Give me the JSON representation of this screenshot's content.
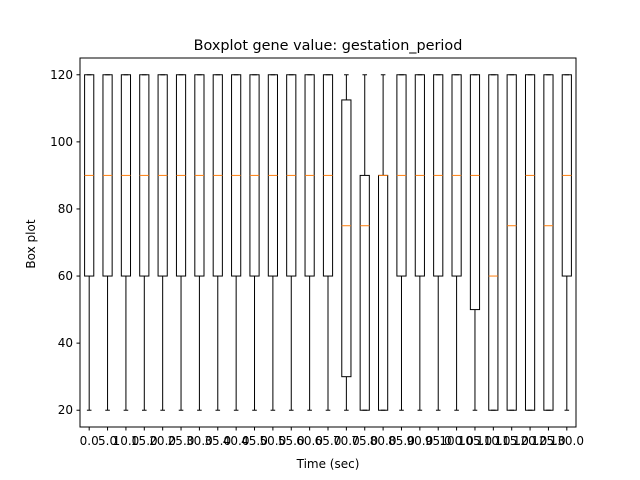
{
  "chart_data": {
    "type": "box",
    "title": "Boxplot gene value: gestation_period",
    "xlabel": "Time (sec)",
    "ylabel": "Box plot",
    "ylim": [
      15.0,
      125.0
    ],
    "yticks": [
      20,
      40,
      60,
      80,
      100,
      120
    ],
    "grid": false,
    "colors": {
      "box": "#000000",
      "median": "#ff7f0e"
    },
    "categories": [
      "0.0",
      "5.0",
      "10.0",
      "15.0",
      "20.0",
      "25.0",
      "30.0",
      "35.0",
      "40.0",
      "45.0",
      "50.0",
      "55.0",
      "60.0",
      "65.0",
      "70.0",
      "75.0",
      "80.0",
      "85.0",
      "90.0",
      "95.0",
      "100.0",
      "105.0",
      "110.0",
      "115.0",
      "120.0",
      "125.0",
      "130.0"
    ],
    "boxes": [
      {
        "whislo": 20,
        "q1": 60,
        "med": 90,
        "q3": 120,
        "whishi": 120
      },
      {
        "whislo": 20,
        "q1": 60,
        "med": 90,
        "q3": 120,
        "whishi": 120
      },
      {
        "whislo": 20,
        "q1": 60,
        "med": 90,
        "q3": 120,
        "whishi": 120
      },
      {
        "whislo": 20,
        "q1": 60,
        "med": 90,
        "q3": 120,
        "whishi": 120
      },
      {
        "whislo": 20,
        "q1": 60,
        "med": 90,
        "q3": 120,
        "whishi": 120
      },
      {
        "whislo": 20,
        "q1": 60,
        "med": 90,
        "q3": 120,
        "whishi": 120
      },
      {
        "whislo": 20,
        "q1": 60,
        "med": 90,
        "q3": 120,
        "whishi": 120
      },
      {
        "whislo": 20,
        "q1": 60,
        "med": 90,
        "q3": 120,
        "whishi": 120
      },
      {
        "whislo": 20,
        "q1": 60,
        "med": 90,
        "q3": 120,
        "whishi": 120
      },
      {
        "whislo": 20,
        "q1": 60,
        "med": 90,
        "q3": 120,
        "whishi": 120
      },
      {
        "whislo": 20,
        "q1": 60,
        "med": 90,
        "q3": 120,
        "whishi": 120
      },
      {
        "whislo": 20,
        "q1": 60,
        "med": 90,
        "q3": 120,
        "whishi": 120
      },
      {
        "whislo": 20,
        "q1": 60,
        "med": 90,
        "q3": 120,
        "whishi": 120
      },
      {
        "whislo": 20,
        "q1": 60,
        "med": 90,
        "q3": 120,
        "whishi": 120
      },
      {
        "whislo": 20,
        "q1": 30,
        "med": 75,
        "q3": 112.5,
        "whishi": 120
      },
      {
        "whislo": 20,
        "q1": 20,
        "med": 75,
        "q3": 90,
        "whishi": 120
      },
      {
        "whislo": 20,
        "q1": 20,
        "med": 90,
        "q3": 90,
        "whishi": 120
      },
      {
        "whislo": 20,
        "q1": 60,
        "med": 90,
        "q3": 120,
        "whishi": 120
      },
      {
        "whislo": 20,
        "q1": 60,
        "med": 90,
        "q3": 120,
        "whishi": 120
      },
      {
        "whislo": 20,
        "q1": 60,
        "med": 90,
        "q3": 120,
        "whishi": 120
      },
      {
        "whislo": 20,
        "q1": 60,
        "med": 90,
        "q3": 120,
        "whishi": 120
      },
      {
        "whislo": 20,
        "q1": 50,
        "med": 90,
        "q3": 120,
        "whishi": 120
      },
      {
        "whislo": 20,
        "q1": 20,
        "med": 60,
        "q3": 120,
        "whishi": 120
      },
      {
        "whislo": 20,
        "q1": 20,
        "med": 75,
        "q3": 120,
        "whishi": 120
      },
      {
        "whislo": 20,
        "q1": 20,
        "med": 90,
        "q3": 120,
        "whishi": 120
      },
      {
        "whislo": 20,
        "q1": 20,
        "med": 75,
        "q3": 120,
        "whishi": 120
      },
      {
        "whislo": 20,
        "q1": 60,
        "med": 90,
        "q3": 120,
        "whishi": 120
      }
    ]
  }
}
